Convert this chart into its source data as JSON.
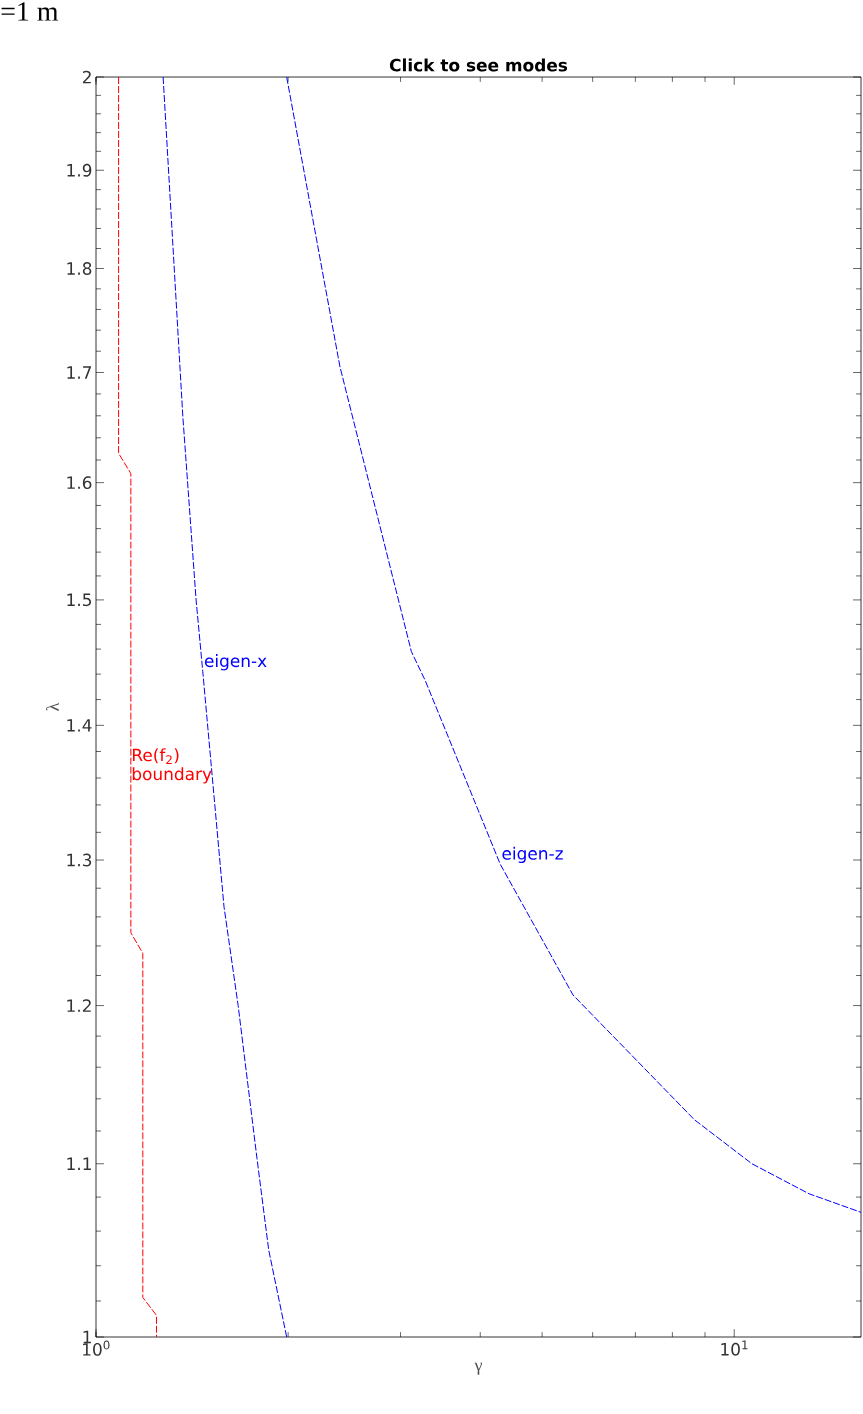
{
  "chart_data": {
    "type": "line",
    "title": "Click to see modes",
    "xlabel": "γ",
    "ylabel": "λ",
    "log": "xy",
    "xlim": [
      1,
      15.8
    ],
    "ylim": [
      1,
      2
    ],
    "xticks": [
      {
        "value": 1,
        "label": "10$^{0}$"
      },
      {
        "value": 10,
        "label": "10$^{1}$"
      }
    ],
    "yticks": [
      1,
      1.1,
      1.2,
      1.3,
      1.4,
      1.5,
      1.6,
      1.7,
      1.8,
      1.9,
      2
    ],
    "grid": false,
    "line_style": "dashed",
    "series": [
      {
        "color": "#ff0000",
        "x": [
          1.085,
          1.085,
          1.134,
          1.134,
          1.184,
          1.184,
          1.244,
          1.244
        ],
        "values": [
          2,
          1.626,
          1.608,
          1.249,
          1.235,
          1.022,
          1.012,
          1
        ]
      },
      {
        "color": "#0000ff",
        "x": [
          1.274,
          1.368,
          1.435,
          1.47,
          1.587,
          1.67,
          1.788,
          1.865,
          1.99
        ],
        "values": [
          2,
          1.659,
          1.5,
          1.442,
          1.267,
          1.2,
          1.103,
          1.049,
          1
        ]
      },
      {
        "color": "#0000ff",
        "x": [
          1.99,
          2.41,
          3.12,
          3.28,
          4.3,
          5.59,
          8.66,
          10.66,
          13.1,
          15.8
        ],
        "values": [
          2,
          1.706,
          1.458,
          1.435,
          1.297,
          1.207,
          1.127,
          1.1,
          1.082,
          1.071
        ]
      }
    ],
    "annotations": [
      "=1 m",
      {
        "text": "Re(f$_{2}$) boundary",
        "x": 1.131,
        "y": 1.355
      },
      {
        "text": "eigen-x",
        "x": 1.47,
        "y": 1.442
      },
      {
        "text": "eigen-z",
        "x": 4.3,
        "y": 1.297
      }
    ]
  }
}
